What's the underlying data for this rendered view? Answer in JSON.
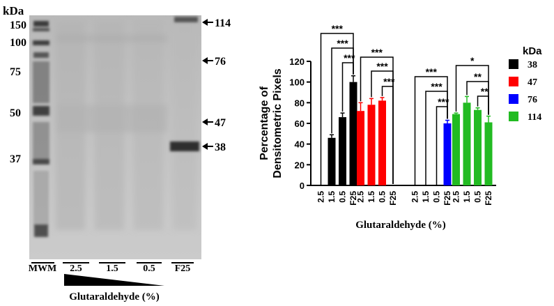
{
  "gel": {
    "kda_label": "kDa",
    "ladder_marks": [
      "150",
      "100",
      "75",
      "50",
      "37"
    ],
    "arrow_labels": [
      "114",
      "76",
      "47",
      "38"
    ],
    "lane_labels": [
      "MWM",
      "2.5",
      "1.5",
      "0.5",
      "F25"
    ],
    "gradient_label": "Glutaraldehyde (%)"
  },
  "chart_data": {
    "type": "bar",
    "ylabel": "Percentage of Densitometric Pixels",
    "xlabel": "Glutaraldehyde (%)",
    "ylim": [
      0,
      120
    ],
    "yticks": [
      0,
      20,
      40,
      60,
      80,
      100,
      120
    ],
    "categories": [
      "2.5",
      "1.5",
      "0.5",
      "F25"
    ],
    "legend_title": "kDa",
    "legend_position": "right",
    "series": [
      {
        "name": "38",
        "color": "#000000",
        "values": [
          0,
          46,
          66,
          100
        ],
        "errors": [
          0,
          3,
          4,
          6
        ]
      },
      {
        "name": "47",
        "color": "#ff0000",
        "values": [
          72,
          78,
          82,
          0
        ],
        "errors": [
          8,
          6,
          3,
          0
        ]
      },
      {
        "name": "76",
        "color": "#0000ff",
        "values": [
          0,
          0,
          0,
          60
        ],
        "errors": [
          0,
          0,
          0,
          3
        ]
      },
      {
        "name": "114",
        "color": "#22bb22",
        "values": [
          69,
          80,
          73,
          61
        ],
        "errors": [
          1,
          6,
          2,
          6
        ]
      }
    ],
    "significance": [
      {
        "series": "38",
        "from": "2.5",
        "to": "F25",
        "label": "***"
      },
      {
        "series": "38",
        "from": "1.5",
        "to": "F25",
        "label": "***"
      },
      {
        "series": "38",
        "from": "0.5",
        "to": "F25",
        "label": "***"
      },
      {
        "series": "47",
        "from": "2.5",
        "to": "F25",
        "label": "***"
      },
      {
        "series": "47",
        "from": "1.5",
        "to": "F25",
        "label": "***"
      },
      {
        "series": "47",
        "from": "0.5",
        "to": "F25",
        "label": "***"
      },
      {
        "series": "76",
        "from": "2.5",
        "to": "F25",
        "label": "***"
      },
      {
        "series": "76",
        "from": "1.5",
        "to": "F25",
        "label": "***"
      },
      {
        "series": "76",
        "from": "0.5",
        "to": "F25",
        "label": "***"
      },
      {
        "series": "114",
        "from": "2.5",
        "to": "F25",
        "label": "*"
      },
      {
        "series": "114",
        "from": "1.5",
        "to": "F25",
        "label": "**"
      },
      {
        "series": "114",
        "from": "0.5",
        "to": "F25",
        "label": "**"
      }
    ]
  }
}
